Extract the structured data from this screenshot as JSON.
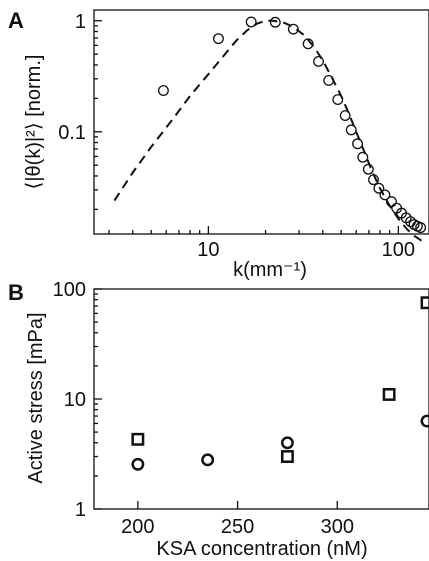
{
  "chart_data": [
    {
      "panel": "A",
      "type": "scatter",
      "xlabel": "k(mm⁻¹)",
      "ylabel": "⟨|θ(k)|²⟩ [norm.]",
      "x_scale": "log",
      "y_scale": "log",
      "xlim": [
        2.5,
        145
      ],
      "ylim": [
        0.012,
        1.25
      ],
      "x_ticks": [
        {
          "value": 10,
          "label": "10"
        },
        {
          "value": 100,
          "label": "100"
        }
      ],
      "y_ticks": [
        {
          "value": 1,
          "label": "1"
        },
        {
          "value": 0.1,
          "label": "0.1"
        }
      ],
      "series": [
        {
          "marker": "open-circle",
          "points": [
            [
              5.8,
              0.235
            ],
            [
              11.3,
              0.69
            ],
            [
              16.8,
              0.975
            ],
            [
              22.5,
              0.97
            ],
            [
              28,
              0.84
            ],
            [
              33.5,
              0.62
            ],
            [
              38,
              0.43
            ],
            [
              43,
              0.29
            ],
            [
              48,
              0.195
            ],
            [
              52.5,
              0.14
            ],
            [
              56.5,
              0.104
            ],
            [
              61,
              0.078
            ],
            [
              65,
              0.059
            ],
            [
              69.5,
              0.046
            ],
            [
              74,
              0.037
            ],
            [
              79,
              0.031
            ],
            [
              85,
              0.027
            ],
            [
              92,
              0.0235
            ],
            [
              98,
              0.0205
            ],
            [
              104,
              0.0185
            ],
            [
              110,
              0.0168
            ],
            [
              116,
              0.0155
            ],
            [
              121,
              0.0146
            ],
            [
              126,
              0.0141
            ],
            [
              131,
              0.0137
            ]
          ]
        },
        {
          "marker": "dashed-line",
          "points": [
            [
              3.2,
              0.024
            ],
            [
              4,
              0.043
            ],
            [
              5,
              0.073
            ],
            [
              6.5,
              0.13
            ],
            [
              8,
              0.21
            ],
            [
              10,
              0.33
            ],
            [
              12,
              0.48
            ],
            [
              14,
              0.66
            ],
            [
              16,
              0.82
            ],
            [
              18,
              0.94
            ],
            [
              20,
              1.0
            ],
            [
              22,
              1.0
            ],
            [
              25,
              0.96
            ],
            [
              28,
              0.88
            ],
            [
              32,
              0.74
            ],
            [
              36,
              0.58
            ],
            [
              40,
              0.44
            ],
            [
              45,
              0.3
            ],
            [
              50,
              0.21
            ],
            [
              55,
              0.145
            ],
            [
              60,
              0.1
            ],
            [
              66,
              0.067
            ],
            [
              72,
              0.046
            ],
            [
              80,
              0.031
            ],
            [
              90,
              0.0215
            ],
            [
              100,
              0.0165
            ],
            [
              110,
              0.0135
            ],
            [
              120,
              0.0117
            ],
            [
              135,
              0.0102
            ]
          ]
        }
      ]
    },
    {
      "panel": "B",
      "type": "scatter",
      "xlabel": "KSA concentration (nM)",
      "ylabel": "Active stress [mPa]",
      "y_scale": "log",
      "xlim": [
        178,
        346
      ],
      "ylim": [
        1,
        100
      ],
      "x_ticks": [
        {
          "value": 200,
          "label": "200"
        },
        {
          "value": 250,
          "label": "250"
        },
        {
          "value": 300,
          "label": "300"
        }
      ],
      "y_ticks": [
        {
          "value": 1,
          "label": "1"
        },
        {
          "value": 10,
          "label": "10"
        },
        {
          "value": 100,
          "label": "100"
        }
      ],
      "series": [
        {
          "marker": "open-circle",
          "points": [
            [
              200,
              2.55
            ],
            [
              235,
              2.8
            ],
            [
              275,
              4.0
            ],
            [
              345,
              6.3
            ]
          ]
        },
        {
          "marker": "open-square",
          "points": [
            [
              200,
              4.3
            ],
            [
              275,
              3.0
            ],
            [
              326,
              11.0
            ],
            [
              345,
              75
            ]
          ]
        }
      ]
    }
  ]
}
